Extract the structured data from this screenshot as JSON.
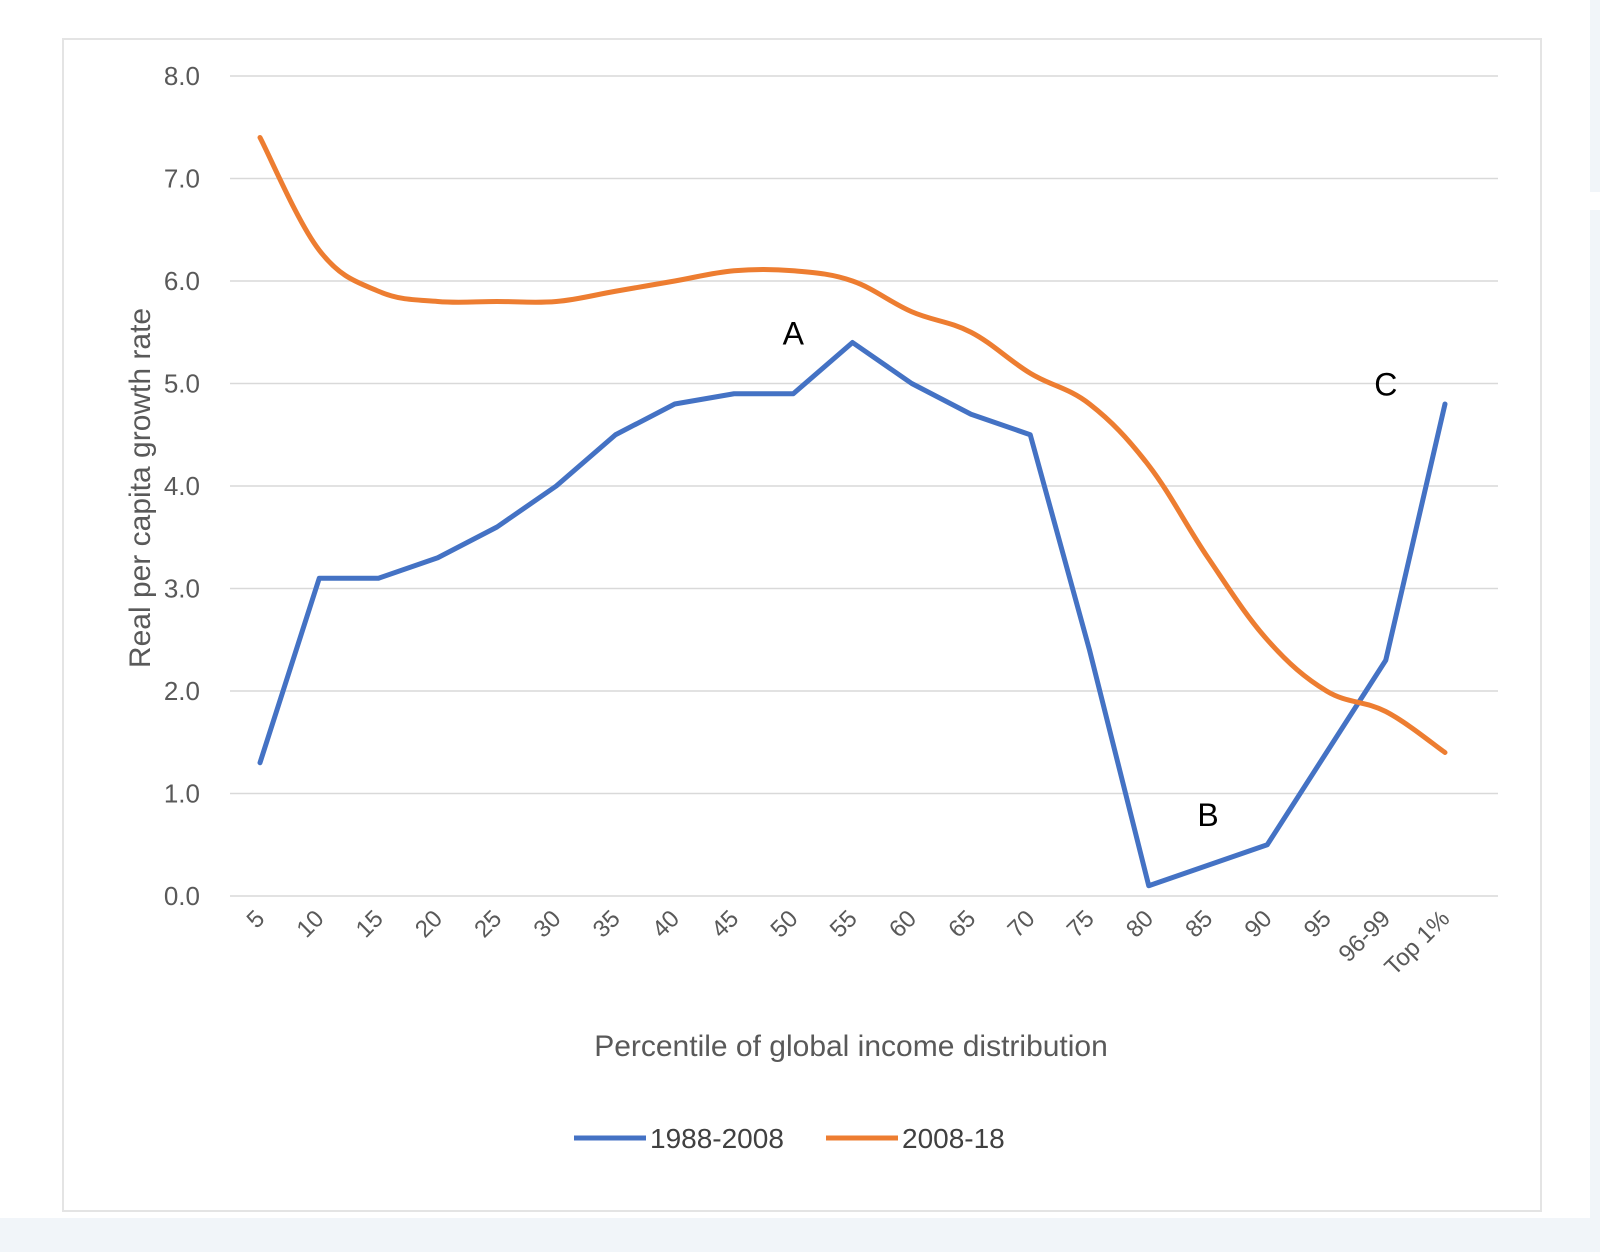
{
  "chart_data": {
    "type": "line",
    "title": "",
    "xlabel": "Percentile of global income distribution",
    "ylabel": "Real per capita growth rate",
    "ylim": [
      0,
      8
    ],
    "yticks": [
      "0.0",
      "1.0",
      "2.0",
      "3.0",
      "4.0",
      "5.0",
      "6.0",
      "7.0",
      "8.0"
    ],
    "grid": true,
    "legend_position": "bottom",
    "categories": [
      "5",
      "10",
      "15",
      "20",
      "25",
      "30",
      "35",
      "40",
      "45",
      "50",
      "55",
      "60",
      "65",
      "70",
      "75",
      "80",
      "85",
      "90",
      "95",
      "96-99",
      "Top 1%"
    ],
    "series": [
      {
        "name": "1988-2008",
        "color": "#4472c4",
        "values": [
          1.3,
          3.1,
          3.1,
          3.3,
          3.6,
          4.0,
          4.5,
          4.8,
          4.9,
          4.9,
          5.4,
          5.0,
          4.7,
          4.5,
          2.4,
          0.1,
          0.3,
          0.5,
          1.4,
          2.3,
          4.8
        ]
      },
      {
        "name": "2008-18",
        "color": "#ed7d31",
        "values": [
          7.4,
          6.3,
          5.9,
          5.8,
          5.8,
          5.8,
          5.9,
          6.0,
          6.1,
          6.1,
          6.0,
          5.7,
          5.5,
          5.1,
          4.8,
          4.2,
          3.3,
          2.5,
          2.0,
          1.8,
          1.4
        ]
      }
    ],
    "annotations": [
      {
        "text": "A",
        "category": "50",
        "y": 5.5
      },
      {
        "text": "B",
        "category": "85",
        "y": 0.8
      },
      {
        "text": "C",
        "category": "96-99",
        "y": 5.0
      }
    ]
  }
}
